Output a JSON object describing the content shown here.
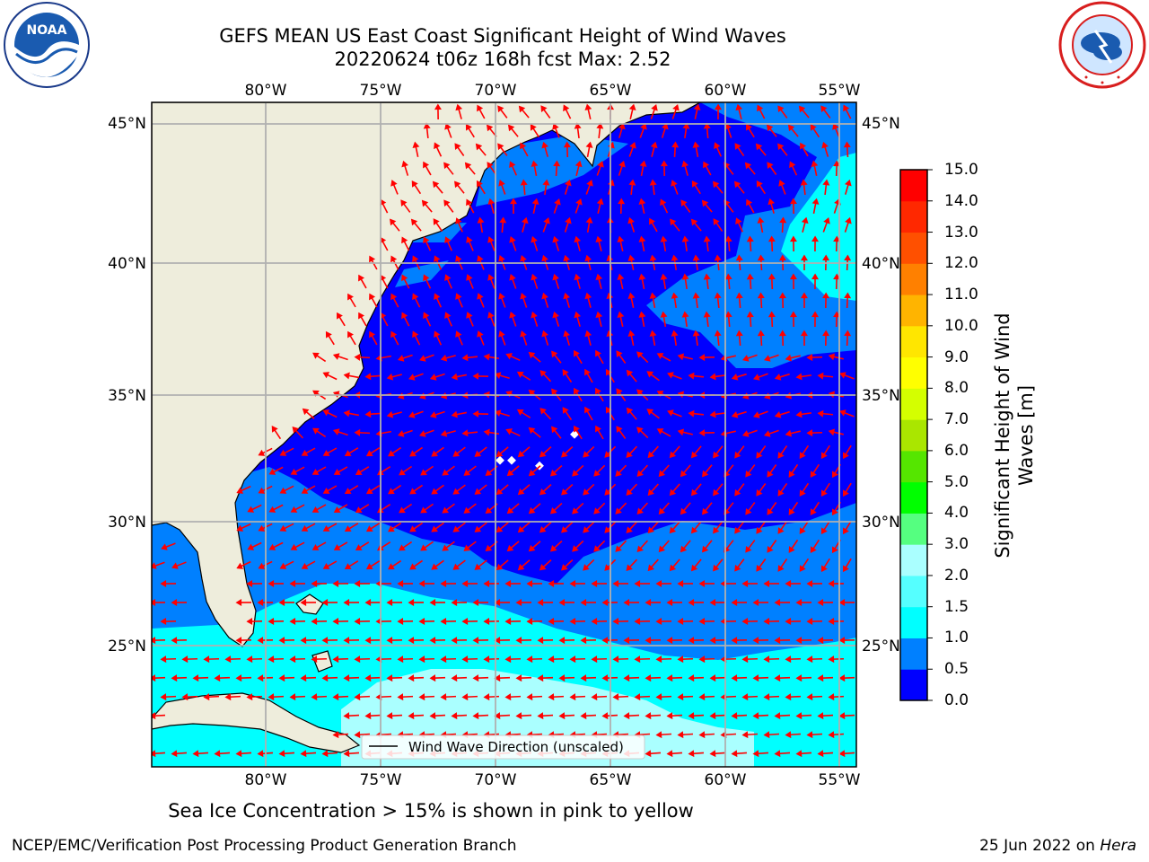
{
  "title": {
    "line1": "GEFS MEAN US East Coast Significant Height of Wind Waves",
    "line2": "20220624 t06z 168h fcst   Max: 2.52"
  },
  "map": {
    "lon_range": [
      -85,
      -54
    ],
    "lat_range": [
      20.5,
      46
    ],
    "lon_ticks": [
      "80°W",
      "75°W",
      "70°W",
      "65°W",
      "60°W",
      "55°W"
    ],
    "lat_ticks": [
      "45°N",
      "40°N",
      "35°N",
      "30°N",
      "25°N"
    ],
    "grid": true,
    "legend": "Wind Wave Direction (unscaled)",
    "colors": {
      "land": "#eeeddc",
      "band_0_05": "#0000ff",
      "band_05_10": "#0080ff",
      "band_10_15": "#00ffff",
      "band_15_20": "#aaffff",
      "arrows": "#ff0000",
      "gridlines": "#b0b0b0"
    }
  },
  "colorbar": {
    "label_line1": "Significant Height of Wind",
    "label_line2": "Waves [m]",
    "ticks": [
      "0.0",
      "0.5",
      "1.0",
      "1.5",
      "2.0",
      "3.0",
      "4.0",
      "5.0",
      "6.0",
      "7.0",
      "8.0",
      "9.0",
      "10.0",
      "11.0",
      "12.0",
      "13.0",
      "14.0",
      "15.0"
    ],
    "colors": [
      "#0000ff",
      "#0080ff",
      "#00ffff",
      "#55ffff",
      "#aaffff",
      "#55ff80",
      "#00ff00",
      "#55e600",
      "#aae600",
      "#d4ff00",
      "#ffff00",
      "#ffe600",
      "#ffb400",
      "#ff8000",
      "#ff5000",
      "#ff2800",
      "#ff0000"
    ]
  },
  "note": "Sea Ice Concentration > 15% is shown in pink to yellow",
  "footer": {
    "left": "NCEP/EMC/Verification Post Processing Product Generation Branch",
    "right_date": "25 Jun 2022 on",
    "right_host": "Hera"
  },
  "logos": {
    "left": "noaa-logo",
    "right": "national-weather-service-logo"
  }
}
